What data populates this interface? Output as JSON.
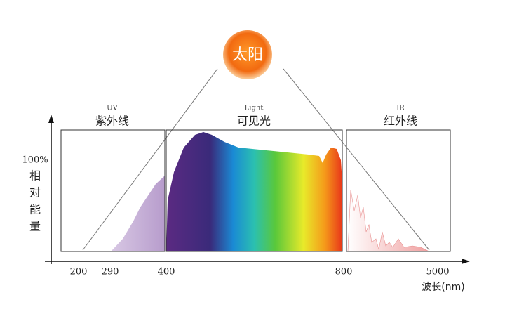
{
  "sun": {
    "label": "太阳"
  },
  "regions": [
    {
      "code": "UV",
      "label": "紫外线"
    },
    {
      "code": "Light",
      "label": "可见光"
    },
    {
      "code": "IR",
      "label": "红外线"
    }
  ],
  "y_axis": {
    "top_label": "100%",
    "label_chars": [
      "相",
      "对",
      "能",
      "量"
    ]
  },
  "x_axis": {
    "ticks": [
      "200",
      "290",
      "400",
      "800",
      "5000"
    ],
    "label": "波长(nm)"
  }
}
